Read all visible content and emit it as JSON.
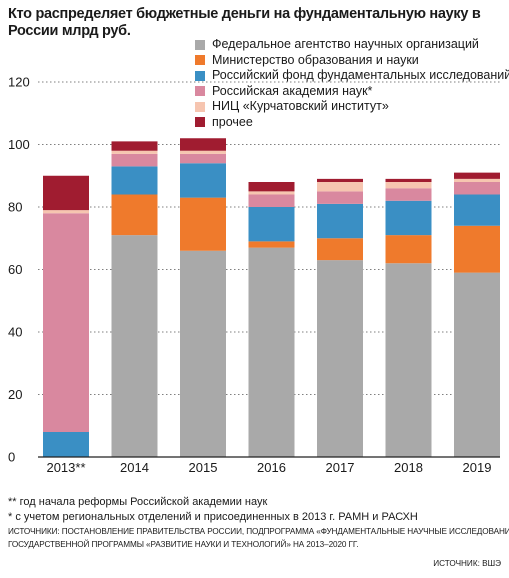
{
  "title": "Кто распределяет бюджетные деньги на фундаментальную науку в России млрд руб.",
  "notes": [
    "** год начала реформы Российской академии наук",
    "* с учетом региональных отделений и присоединенных в 2013 г. РАМН и РАСХН"
  ],
  "sources": [
    "ИСТОЧНИКИ: ПОСТАНОВЛЕНИЕ ПРАВИТЕЛЬСТВА РОССИИ, ПОДПРОГРАММА «ФУНДАМЕНТАЛЬНЫЕ НАУЧНЫЕ ИССЛЕДОВАНИЯ»",
    "ГОСУДАРСТВЕННОЙ ПРОГРАММЫ «РАЗВИТИЕ НАУКИ И ТЕХНОЛОГИЙ» НА 2013–2020 ГГ."
  ],
  "source_right": "ИСТОЧНИК: ВШЭ",
  "chart_data": {
    "type": "bar",
    "stacked": true,
    "title": "Кто распределяет бюджетные деньги на фундаментальную науку в России млрд руб.",
    "categories": [
      "2013**",
      "2014",
      "2015",
      "2016",
      "2017",
      "2018",
      "2019"
    ],
    "ylim": [
      0,
      120
    ],
    "yticks": [
      0,
      20,
      40,
      60,
      80,
      100,
      120
    ],
    "grid": true,
    "legend_position": "top-right",
    "series": [
      {
        "name": "Федеральное агентство научных организаций",
        "color": "#a9a9a9",
        "values": [
          0,
          71,
          66,
          67,
          63,
          62,
          59
        ]
      },
      {
        "name": "Министерство образования и науки",
        "color": "#ef7a2c",
        "values": [
          0,
          13,
          17,
          2,
          7,
          9,
          15
        ]
      },
      {
        "name": "Российский фонд фундаментальных исследований",
        "color": "#3a8fc4",
        "values": [
          8,
          9,
          11,
          11,
          11,
          11,
          10
        ]
      },
      {
        "name": "Российская академия наук*",
        "color": "#d9889f",
        "values": [
          70,
          4,
          3,
          4,
          4,
          4,
          4
        ]
      },
      {
        "name": "НИЦ «Курчатовский институт»",
        "color": "#f6c5b0",
        "values": [
          1,
          1,
          1,
          1,
          3,
          2,
          1
        ]
      },
      {
        "name": "прочее",
        "color": "#a01c30",
        "values": [
          11,
          3,
          4,
          3,
          1,
          1,
          2
        ]
      }
    ]
  }
}
